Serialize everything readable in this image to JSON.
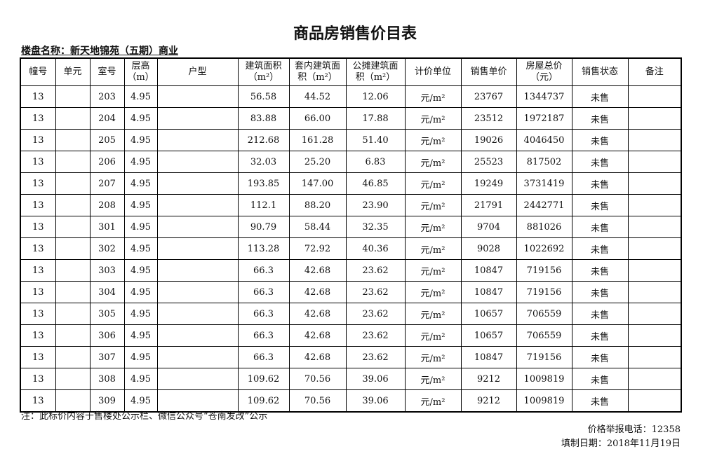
{
  "title": "商品房销售价目表",
  "project_label": "楼盘名称：新天地锦苑（五期）商业",
  "headers": [
    "幢号",
    "单元",
    "室号",
    "层高\n（m）",
    "户型",
    "建筑面积\n（m²）",
    "套内建筑面\n积（m²）",
    "公摊建筑面\n积（m²）",
    "计价单位",
    "销售单价",
    "房屋总价\n（元）",
    "销售状态",
    "备注"
  ],
  "rows": [
    [
      "13",
      "",
      "203",
      "4.95",
      "",
      "56.58",
      "44.52",
      "12.06",
      "元/m²",
      "23767",
      "1344737",
      "未售",
      ""
    ],
    [
      "13",
      "",
      "204",
      "4.95",
      "",
      "83.88",
      "66.00",
      "17.88",
      "元/m²",
      "23512",
      "1972187",
      "未售",
      ""
    ],
    [
      "13",
      "",
      "205",
      "4.95",
      "",
      "212.68",
      "161.28",
      "51.40",
      "元/m²",
      "19026",
      "4046450",
      "未售",
      ""
    ],
    [
      "13",
      "",
      "206",
      "4.95",
      "",
      "32.03",
      "25.20",
      "6.83",
      "元/m²",
      "25523",
      "817502",
      "未售",
      ""
    ],
    [
      "13",
      "",
      "207",
      "4.95",
      "",
      "193.85",
      "147.00",
      "46.85",
      "元/m²",
      "19249",
      "3731419",
      "未售",
      ""
    ],
    [
      "13",
      "",
      "208",
      "4.95",
      "",
      "112.1",
      "88.20",
      "23.90",
      "元/m²",
      "21791",
      "2442771",
      "未售",
      ""
    ],
    [
      "13",
      "",
      "301",
      "4.95",
      "",
      "90.79",
      "58.44",
      "32.35",
      "元/m²",
      "9704",
      "881026",
      "未售",
      ""
    ],
    [
      "13",
      "",
      "302",
      "4.95",
      "",
      "113.28",
      "72.92",
      "40.36",
      "元/m²",
      "9028",
      "1022692",
      "未售",
      ""
    ],
    [
      "13",
      "",
      "303",
      "4.95",
      "",
      "66.3",
      "42.68",
      "23.62",
      "元/m²",
      "10847",
      "719156",
      "未售",
      ""
    ],
    [
      "13",
      "",
      "304",
      "4.95",
      "",
      "66.3",
      "42.68",
      "23.62",
      "元/m²",
      "10847",
      "719156",
      "未售",
      ""
    ],
    [
      "13",
      "",
      "305",
      "4.95",
      "",
      "66.3",
      "42.68",
      "23.62",
      "元/m²",
      "10657",
      "706559",
      "未售",
      ""
    ],
    [
      "13",
      "",
      "306",
      "4.95",
      "",
      "66.3",
      "42.68",
      "23.62",
      "元/m²",
      "10657",
      "706559",
      "未售",
      ""
    ],
    [
      "13",
      "",
      "307",
      "4.95",
      "",
      "66.3",
      "42.68",
      "23.62",
      "元/m²",
      "10847",
      "719156",
      "未售",
      ""
    ],
    [
      "13",
      "",
      "308",
      "4.95",
      "",
      "109.62",
      "70.56",
      "39.06",
      "元/m²",
      "9212",
      "1009819",
      "未售",
      ""
    ],
    [
      "13",
      "",
      "309",
      "4.95",
      "",
      "109.62",
      "70.56",
      "39.06",
      "元/m²",
      "9212",
      "1009819",
      "未售",
      ""
    ]
  ],
  "note": "注：此标价内容于售楼处公示栏、微信公众号“苍南发改”公示",
  "hotline": "价格举报电话：12358",
  "date": "填制日期：2018年11月19日"
}
